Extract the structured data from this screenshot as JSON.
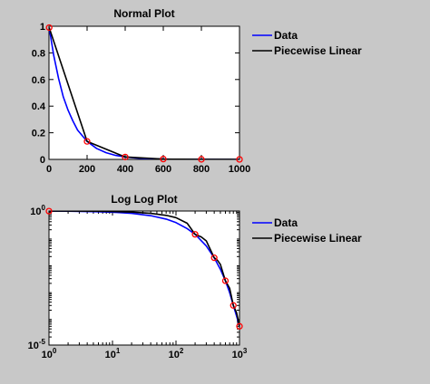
{
  "chart_data": [
    {
      "type": "line",
      "title": "Normal Plot",
      "xlabel": "",
      "ylabel": "",
      "xscale": "linear",
      "yscale": "linear",
      "xlim": [
        0,
        1000
      ],
      "ylim": [
        0,
        1
      ],
      "xticks": [
        0,
        200,
        400,
        600,
        800,
        1000
      ],
      "xtick_labels": [
        "0",
        "200",
        "400",
        "600",
        "800",
        "1000"
      ],
      "yticks": [
        0,
        0.2,
        0.4,
        0.6,
        0.8,
        1
      ],
      "ytick_labels": [
        "0",
        "0.2",
        "0.4",
        "0.6",
        "0.8",
        "1"
      ],
      "grid": false,
      "legend_placement": "outside-right-top",
      "series": [
        {
          "name": "Data",
          "color": "#0000ff",
          "x": [
            1,
            25,
            50,
            75,
            100,
            125,
            150,
            200,
            250,
            300,
            350,
            400,
            450,
            500,
            600,
            700,
            800,
            900,
            1000
          ],
          "y": [
            0.99,
            0.78,
            0.61,
            0.47,
            0.37,
            0.29,
            0.22,
            0.135,
            0.082,
            0.05,
            0.03,
            0.018,
            0.011,
            0.0067,
            0.0025,
            0.0009,
            0.0003,
            0.0001,
            5e-05
          ]
        },
        {
          "name": "Piecewise Linear",
          "color": "#000000",
          "x": [
            1,
            200,
            400,
            600,
            800,
            1000
          ],
          "y": [
            0.99,
            0.135,
            0.018,
            0.0025,
            0.0003,
            5e-05
          ]
        }
      ],
      "markers": {
        "color": "#ff0000",
        "x": [
          1,
          200,
          400,
          600,
          800,
          1000
        ],
        "y": [
          0.99,
          0.135,
          0.018,
          0.0025,
          0.0003,
          5e-05
        ]
      }
    },
    {
      "type": "line",
      "title": "Log Log Plot",
      "xlabel": "",
      "ylabel": "",
      "xscale": "log",
      "yscale": "log",
      "xlim": [
        1,
        1000
      ],
      "ylim": [
        1e-05,
        1
      ],
      "xticks": [
        1,
        10,
        100,
        1000
      ],
      "xtick_labels": [
        {
          "base": "10",
          "exp": "0"
        },
        {
          "base": "10",
          "exp": "1"
        },
        {
          "base": "10",
          "exp": "2"
        },
        {
          "base": "10",
          "exp": "3"
        }
      ],
      "yticks": [
        1e-05,
        1
      ],
      "ytick_labels": [
        {
          "base": "10",
          "exp": "-5"
        },
        {
          "base": "10",
          "exp": "0"
        }
      ],
      "grid": false,
      "legend_placement": "outside-right-top",
      "series": [
        {
          "name": "Data",
          "color": "#0000ff",
          "x": [
            1,
            2,
            5,
            10,
            20,
            40,
            70,
            100,
            150,
            200,
            300,
            400,
            500,
            600,
            700,
            800,
            900,
            1000
          ],
          "y": [
            0.99,
            0.98,
            0.95,
            0.905,
            0.82,
            0.67,
            0.5,
            0.37,
            0.22,
            0.135,
            0.05,
            0.018,
            0.0067,
            0.0025,
            0.0009,
            0.0003,
            0.00012,
            5e-05
          ]
        },
        {
          "name": "Piecewise Linear",
          "color": "#000000",
          "x": [
            1,
            2,
            5,
            10,
            20,
            40,
            70,
            100,
            150,
            200,
            250,
            300,
            400,
            450,
            500,
            600,
            650,
            700,
            800,
            850,
            900,
            1000
          ],
          "y": [
            0.99,
            0.99,
            0.98,
            0.955,
            0.91,
            0.82,
            0.69,
            0.565,
            0.35,
            0.135,
            0.108,
            0.077,
            0.018,
            0.0145,
            0.0102,
            0.0025,
            0.0018,
            0.0013,
            0.0003,
            0.00022,
            0.00016,
            5e-05
          ]
        }
      ],
      "markers": {
        "color": "#ff0000",
        "x": [
          1,
          200,
          400,
          600,
          800,
          1000
        ],
        "y": [
          0.99,
          0.135,
          0.018,
          0.0025,
          0.0003,
          5e-05
        ]
      }
    }
  ]
}
